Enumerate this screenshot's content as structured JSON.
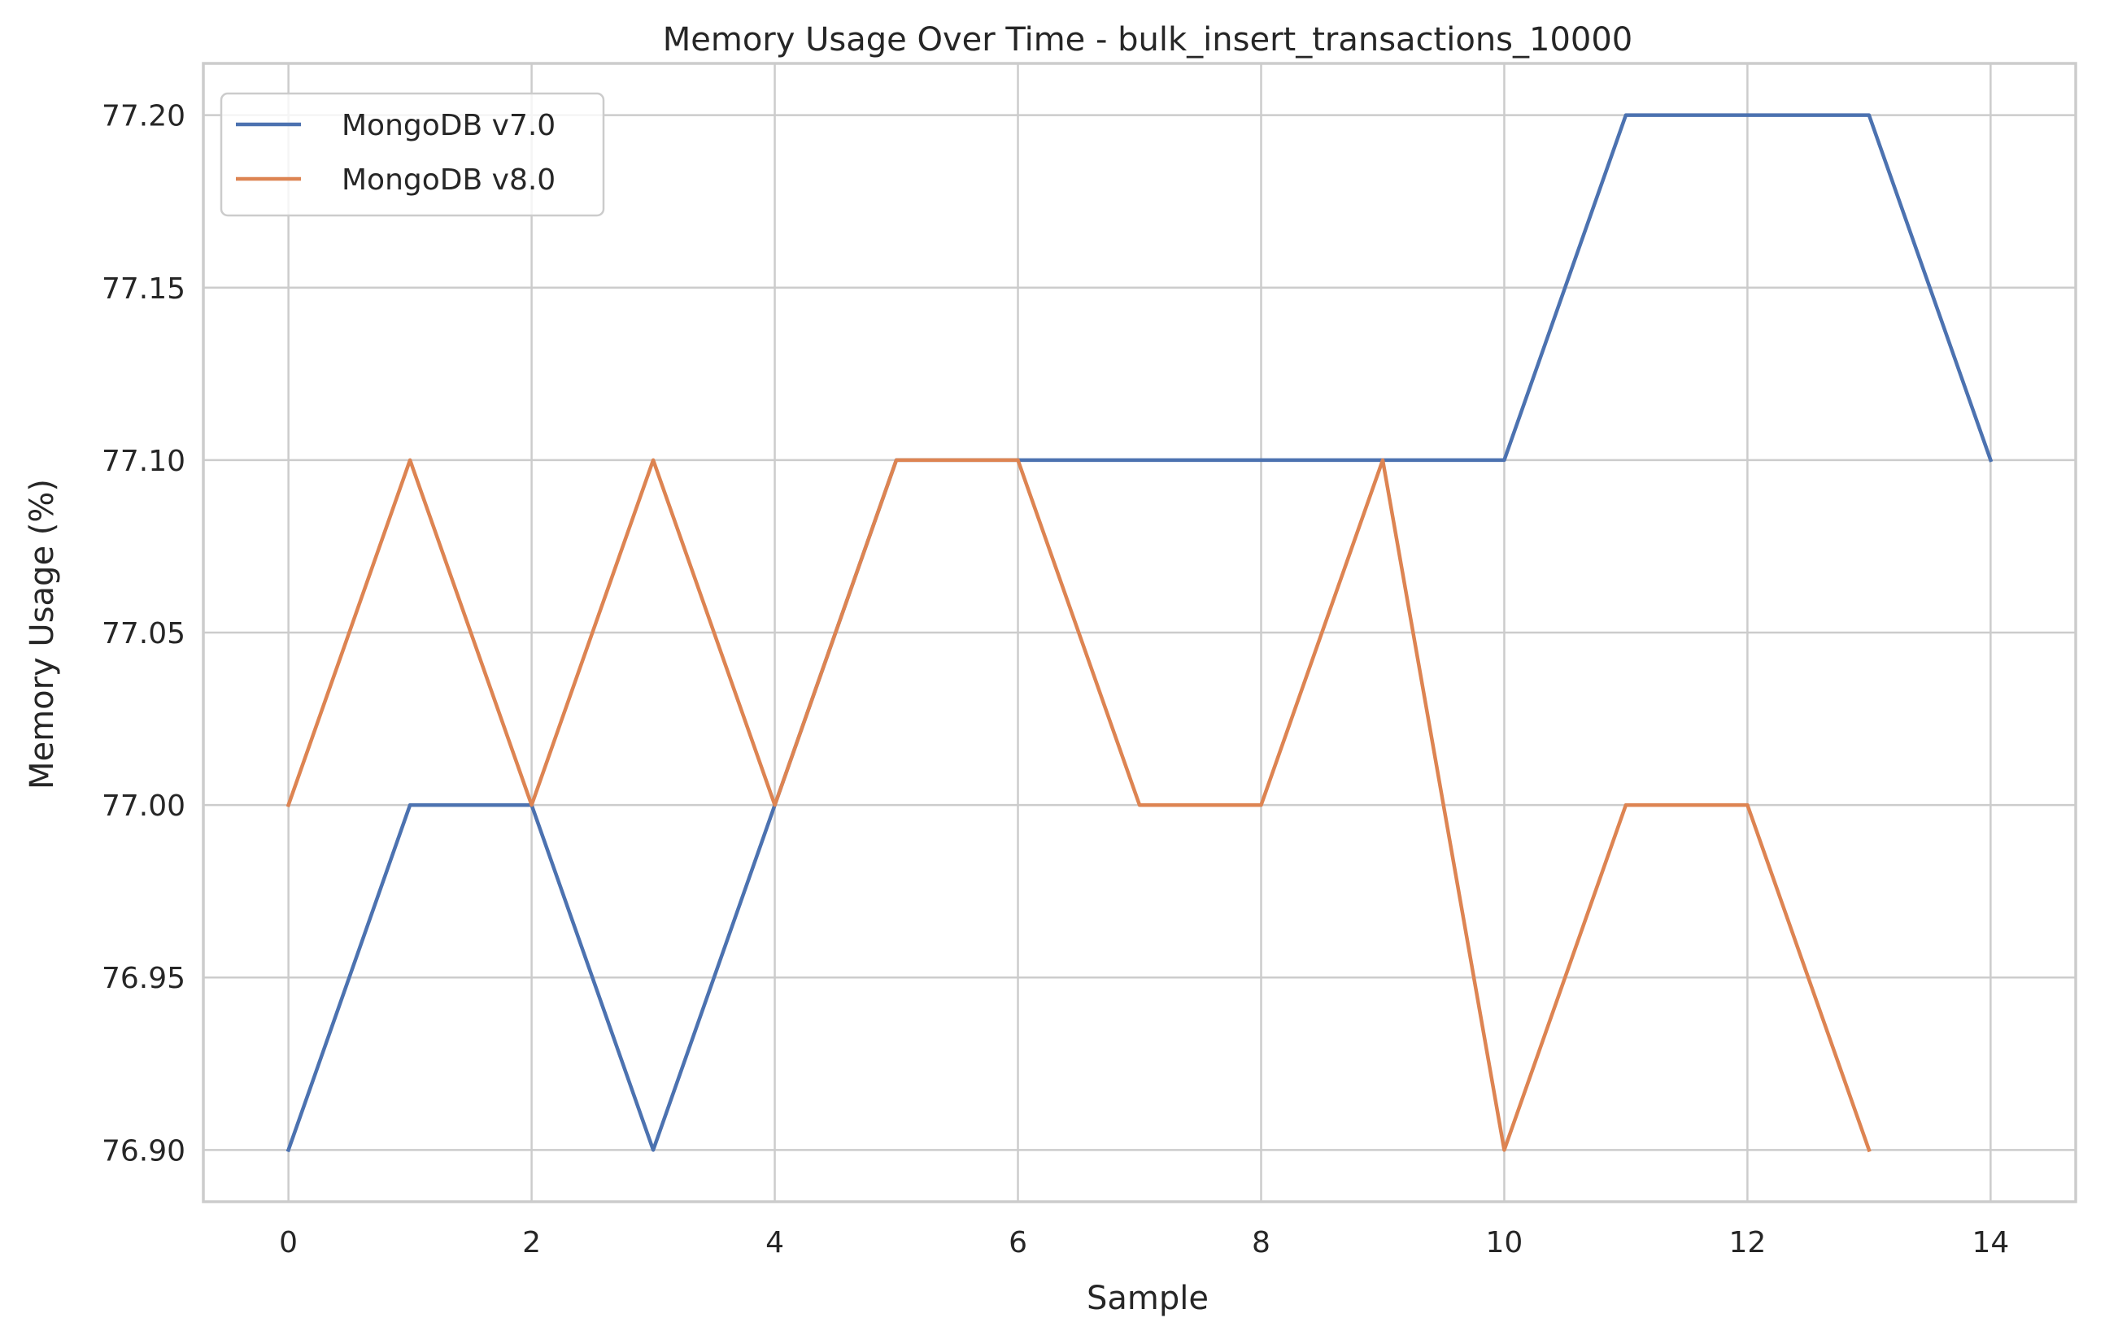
{
  "chart_data": {
    "type": "line",
    "title": "Memory Usage Over Time - bulk_insert_transactions_10000",
    "xlabel": "Sample",
    "ylabel": "Memory Usage (%)",
    "xlim": [
      -0.7,
      14.7
    ],
    "ylim": [
      76.885,
      77.215
    ],
    "xticks": [
      0,
      2,
      4,
      6,
      8,
      10,
      12,
      14
    ],
    "xtick_labels": [
      "0",
      "2",
      "4",
      "6",
      "8",
      "10",
      "12",
      "14"
    ],
    "yticks": [
      76.9,
      76.95,
      77.0,
      77.05,
      77.1,
      77.15,
      77.2
    ],
    "ytick_labels": [
      "76.90",
      "76.95",
      "77.00",
      "77.05",
      "77.10",
      "77.15",
      "77.20"
    ],
    "grid": true,
    "legend_position": "top-left",
    "series": [
      {
        "name": "MongoDB v7.0",
        "color": "#4c72b0",
        "x": [
          0,
          1,
          2,
          3,
          4,
          5,
          6,
          7,
          8,
          9,
          10,
          11,
          12,
          13,
          14
        ],
        "values": [
          76.9,
          77.0,
          77.0,
          76.9,
          77.0,
          77.1,
          77.1,
          77.1,
          77.1,
          77.1,
          77.1,
          77.2,
          77.2,
          77.2,
          77.1
        ]
      },
      {
        "name": "MongoDB v8.0",
        "color": "#dd8452",
        "x": [
          0,
          1,
          2,
          3,
          4,
          5,
          6,
          7,
          8,
          9,
          10,
          11,
          12,
          13
        ],
        "values": [
          77.0,
          77.1,
          77.0,
          77.1,
          77.0,
          77.1,
          77.1,
          77.0,
          77.0,
          77.1,
          76.9,
          77.0,
          77.0,
          76.9
        ]
      }
    ]
  }
}
